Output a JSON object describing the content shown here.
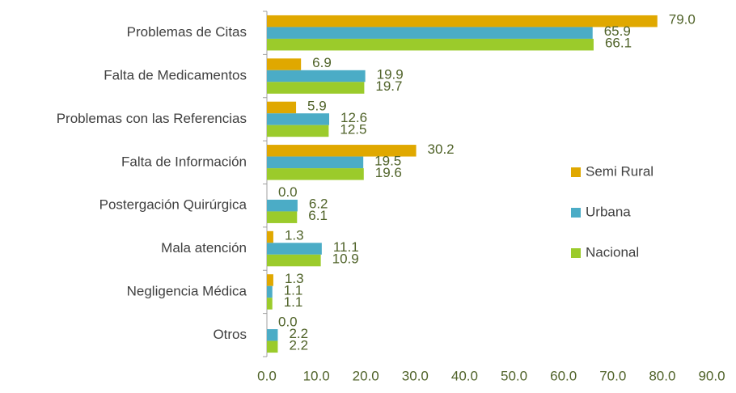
{
  "chart_data": {
    "type": "bar",
    "orientation": "horizontal",
    "categories": [
      "Problemas de Citas",
      "Falta de Medicamentos",
      "Problemas con las Referencias",
      "Falta de Información",
      "Postergación Quirúrgica",
      "Mala atención",
      "Negligencia Médica",
      "Otros"
    ],
    "series": [
      {
        "name": "Semi Rural",
        "color": "#e0a800",
        "values": [
          79.0,
          6.9,
          5.9,
          30.2,
          0.0,
          1.3,
          1.3,
          0.0
        ],
        "value_labels": [
          "79.0",
          "6.9",
          "5.9",
          "30.2",
          "0.0",
          "1.3",
          "1.3",
          "0.0"
        ]
      },
      {
        "name": "Urbana",
        "color": "#4bacc6",
        "values": [
          65.9,
          19.9,
          12.6,
          19.5,
          6.2,
          11.1,
          1.1,
          2.2
        ],
        "value_labels": [
          "65.9",
          "19.9",
          "12.6",
          "19.5",
          "6.2",
          "11.1",
          "1.1",
          "2.2"
        ]
      },
      {
        "name": "Nacional",
        "color": "#9bcb2b",
        "values": [
          66.1,
          19.7,
          12.5,
          19.6,
          6.1,
          10.9,
          1.1,
          2.2
        ],
        "value_labels": [
          "66.1",
          "19.7",
          "12.5",
          "19.6",
          "6.1",
          "10.9",
          "1.1",
          "2.2"
        ]
      }
    ],
    "xlim": [
      0,
      90
    ],
    "xticks": [
      {
        "value": 0,
        "label": "0.0"
      },
      {
        "value": 10,
        "label": "10.0"
      },
      {
        "value": 20,
        "label": "20.0"
      },
      {
        "value": 30,
        "label": "30.0"
      },
      {
        "value": 40,
        "label": "40.0"
      },
      {
        "value": 50,
        "label": "50.0"
      },
      {
        "value": 60,
        "label": "60.0"
      },
      {
        "value": 70,
        "label": "70.0"
      },
      {
        "value": 80,
        "label": "80.0"
      },
      {
        "value": 90,
        "label": "90.0"
      }
    ],
    "legend": "right"
  }
}
